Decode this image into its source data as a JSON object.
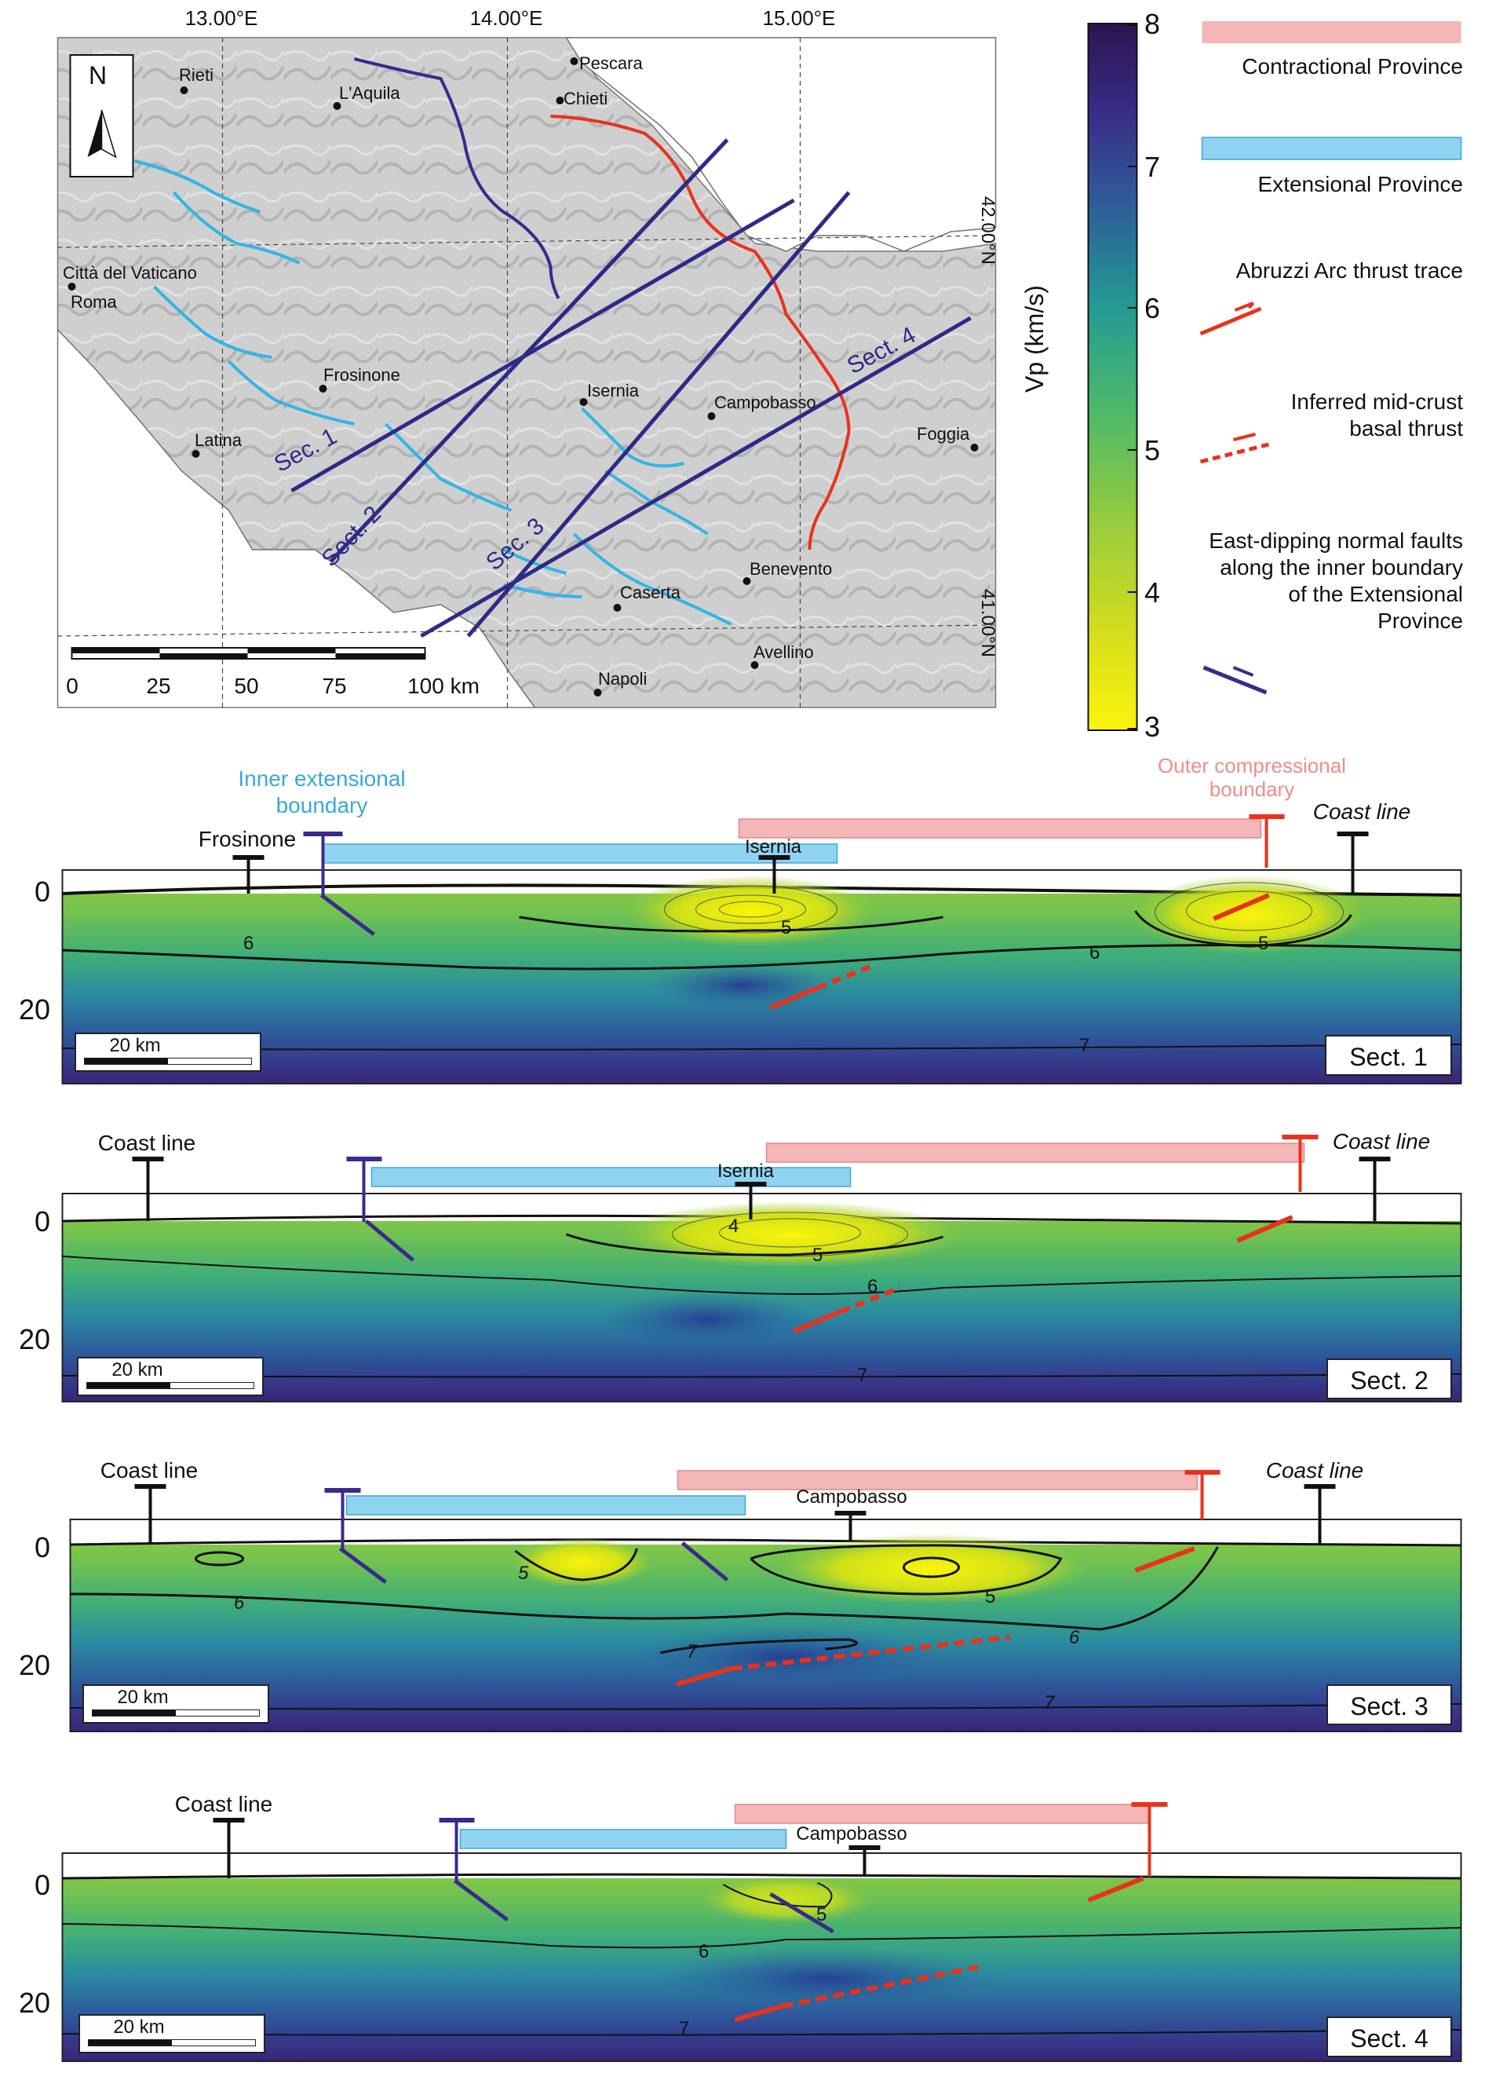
{
  "map": {
    "lon_labels": [
      "13.00°E",
      "14.00°E",
      "15.00°E"
    ],
    "lat_labels": [
      "42.00°N",
      "41.00°N"
    ],
    "north_label": "N",
    "cities": [
      "Pescara",
      "Rieti",
      "L'Aquila",
      "Chieti",
      "Città del Vaticano",
      "Roma",
      "Frosinone",
      "Isernia",
      "Campobasso",
      "Foggia",
      "Latina",
      "Benevento",
      "Caserta",
      "Avellino",
      "Napoli"
    ],
    "section_labels": [
      "Sec. 1",
      "Sect. 2",
      "Sec. 3",
      "Sect. 4"
    ],
    "scale_ticks": [
      "0",
      "25",
      "50",
      "75",
      "100 km"
    ]
  },
  "colorbar": {
    "title": "Vp (km/s)",
    "ticks": [
      "8",
      "7",
      "6",
      "5",
      "4",
      "3"
    ],
    "min": 3,
    "max": 8
  },
  "legend": {
    "items": [
      {
        "label": "Contractional Province",
        "color": "#f4b6b6"
      },
      {
        "label": "Extensional Province",
        "color": "#8fd3f0"
      },
      {
        "label": "Abruzzi Arc thrust trace",
        "color": "#e8321c"
      },
      {
        "label": "Inferred mid-crust basal thrust",
        "color": "#e8321c"
      },
      {
        "label": "East-dipping normal faults along the inner boundary of the Extensional Province",
        "color": "#3b2a8c"
      }
    ]
  },
  "sections": [
    {
      "name": "Sect. 1",
      "top_labels": {
        "inner": "Inner extensional boundary",
        "outer": "Outer compressional boundary"
      },
      "place_labels": [
        "Frosinone",
        "Isernia",
        "Coast line"
      ],
      "depth_ticks": [
        "0",
        "20"
      ],
      "contour_labels": [
        "5",
        "6",
        "6",
        "5",
        "7"
      ],
      "scale": "20 km"
    },
    {
      "name": "Sect. 2",
      "place_labels": [
        "Coast line",
        "Isernia",
        "Coast line"
      ],
      "depth_ticks": [
        "0",
        "20"
      ],
      "contour_labels": [
        "4",
        "5",
        "6",
        "7"
      ],
      "scale": "20 km"
    },
    {
      "name": "Sect. 3",
      "place_labels": [
        "Coast line",
        "Campobasso",
        "Coast line"
      ],
      "depth_ticks": [
        "0",
        "20"
      ],
      "contour_labels": [
        "5",
        "6",
        "5",
        "6",
        "7",
        "7"
      ],
      "scale": "20 km"
    },
    {
      "name": "Sect. 4",
      "place_labels": [
        "Coast line",
        "Campobasso"
      ],
      "depth_ticks": [
        "0",
        "20"
      ],
      "contour_labels": [
        "5",
        "6",
        "7"
      ],
      "scale": "20 km"
    }
  ],
  "colors": {
    "extensional": "#8fd3f0",
    "contractional": "#f4b6b6",
    "thrust": "#e8321c",
    "normal_fault": "#3b2a8c",
    "section_line": "#2e2a86",
    "river_blue": "#33b5e5"
  }
}
